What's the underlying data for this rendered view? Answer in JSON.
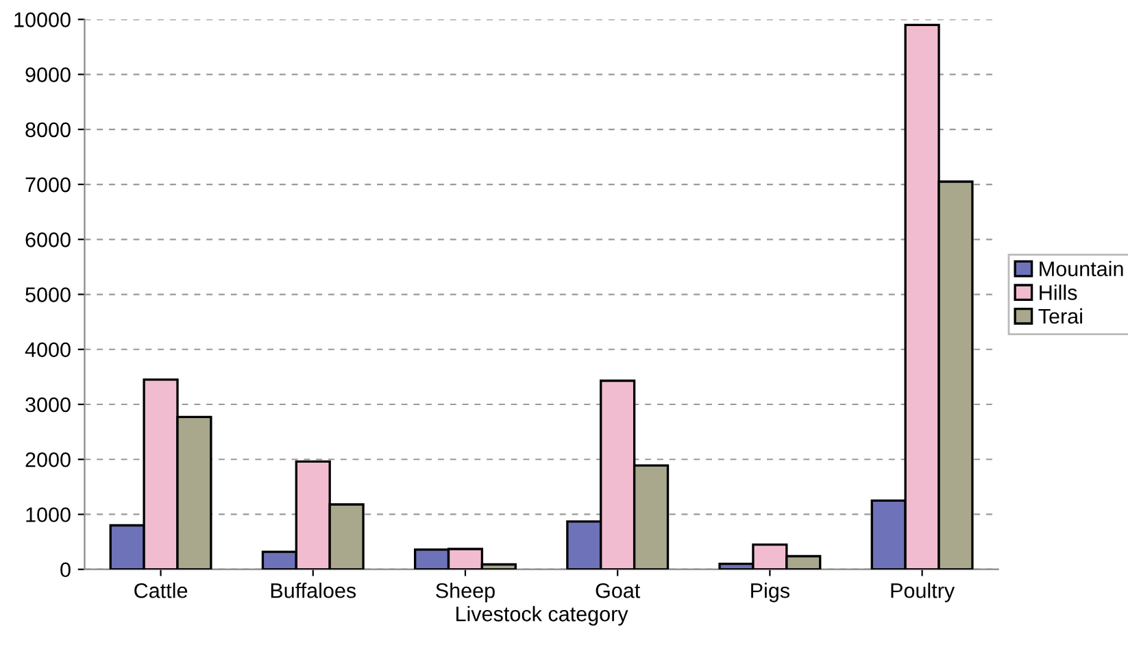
{
  "chart_data": {
    "type": "bar",
    "xlabel": "Livestock category",
    "categories": [
      "Cattle",
      "Buffaloes",
      "Sheep",
      "Goat",
      "Pigs",
      "Poultry"
    ],
    "series": [
      {
        "name": "Mountain",
        "color": "#6e72b8",
        "values": [
          800,
          320,
          360,
          870,
          100,
          1250
        ]
      },
      {
        "name": "Hills",
        "color": "#f2bcd0",
        "values": [
          3450,
          1960,
          370,
          3430,
          450,
          9900
        ]
      },
      {
        "name": "Terai",
        "color": "#a9a78c",
        "values": [
          2770,
          1180,
          90,
          1890,
          240,
          7050
        ]
      }
    ],
    "ylim": [
      0,
      10000
    ],
    "yticks": [
      0,
      1000,
      2000,
      3000,
      4000,
      5000,
      6000,
      7000,
      8000,
      9000,
      10000
    ],
    "grid": "y",
    "legend": "right"
  }
}
